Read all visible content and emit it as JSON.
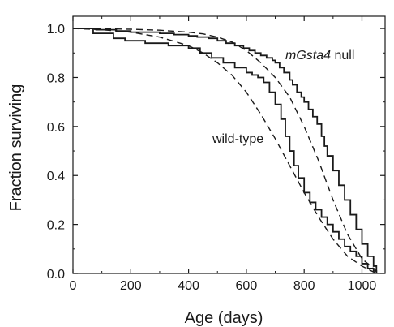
{
  "chart_data": {
    "type": "line",
    "title": "",
    "xlabel": "Age (days)",
    "ylabel": "Fraction surviving",
    "xlim": [
      0,
      1080
    ],
    "ylim": [
      0,
      1.05
    ],
    "x_ticks": [
      0,
      200,
      400,
      600,
      800,
      1000
    ],
    "y_ticks": [
      0.0,
      0.2,
      0.4,
      0.6,
      0.8,
      1.0
    ],
    "x_tick_labels": [
      "0",
      "200",
      "400",
      "600",
      "800",
      "1000"
    ],
    "y_tick_labels": [
      "0.0",
      "0.2",
      "0.4",
      "0.6",
      "0.8",
      "1.0"
    ],
    "annotations": {
      "null_italic": "mGsta4",
      "null_suffix": " null",
      "wildtype": "wild-type"
    },
    "line_color": "#1a1a1a",
    "series": [
      {
        "style": "step",
        "x": [
          0,
          80,
          150,
          200,
          300,
          350,
          400,
          430,
          470,
          500,
          530,
          560,
          590,
          610,
          630,
          650,
          670,
          690,
          700,
          715,
          730,
          750,
          760,
          775,
          790,
          800,
          815,
          830,
          845,
          860,
          870,
          880,
          900,
          920,
          940,
          960,
          980,
          1000,
          1020,
          1040,
          1050
        ],
        "y": [
          1.0,
          0.995,
          0.99,
          0.985,
          0.98,
          0.975,
          0.97,
          0.965,
          0.96,
          0.95,
          0.94,
          0.93,
          0.92,
          0.91,
          0.9,
          0.89,
          0.88,
          0.87,
          0.86,
          0.84,
          0.82,
          0.79,
          0.77,
          0.74,
          0.72,
          0.7,
          0.67,
          0.64,
          0.61,
          0.56,
          0.52,
          0.48,
          0.42,
          0.36,
          0.3,
          0.24,
          0.18,
          0.12,
          0.07,
          0.03,
          0.0
        ]
      },
      {
        "style": "step",
        "x": [
          0,
          70,
          140,
          180,
          250,
          330,
          400,
          440,
          480,
          520,
          560,
          600,
          620,
          640,
          660,
          680,
          700,
          720,
          735,
          750,
          765,
          780,
          800,
          820,
          840,
          860,
          880,
          900,
          920,
          940,
          960,
          980,
          1000,
          1020,
          1040,
          1050
        ],
        "y": [
          1.0,
          0.98,
          0.96,
          0.95,
          0.94,
          0.93,
          0.92,
          0.9,
          0.88,
          0.86,
          0.84,
          0.82,
          0.81,
          0.8,
          0.78,
          0.74,
          0.69,
          0.63,
          0.56,
          0.5,
          0.44,
          0.39,
          0.33,
          0.29,
          0.26,
          0.23,
          0.2,
          0.17,
          0.14,
          0.11,
          0.09,
          0.07,
          0.04,
          0.02,
          0.01,
          0.0
        ]
      },
      {
        "style": "dashed",
        "x": [
          0,
          100,
          200,
          300,
          400,
          450,
          500,
          550,
          600,
          650,
          700,
          750,
          800,
          850,
          900,
          950,
          1000,
          1050
        ],
        "y": [
          1.0,
          0.999,
          0.997,
          0.993,
          0.985,
          0.978,
          0.965,
          0.945,
          0.91,
          0.86,
          0.8,
          0.72,
          0.6,
          0.46,
          0.3,
          0.16,
          0.06,
          0.01
        ]
      },
      {
        "style": "dashed",
        "x": [
          0,
          100,
          200,
          300,
          400,
          450,
          500,
          550,
          600,
          650,
          700,
          750,
          800,
          850,
          900,
          950,
          1000,
          1050
        ],
        "y": [
          1.0,
          0.995,
          0.985,
          0.965,
          0.93,
          0.9,
          0.86,
          0.81,
          0.74,
          0.65,
          0.55,
          0.44,
          0.33,
          0.23,
          0.14,
          0.07,
          0.03,
          0.0
        ]
      }
    ]
  }
}
